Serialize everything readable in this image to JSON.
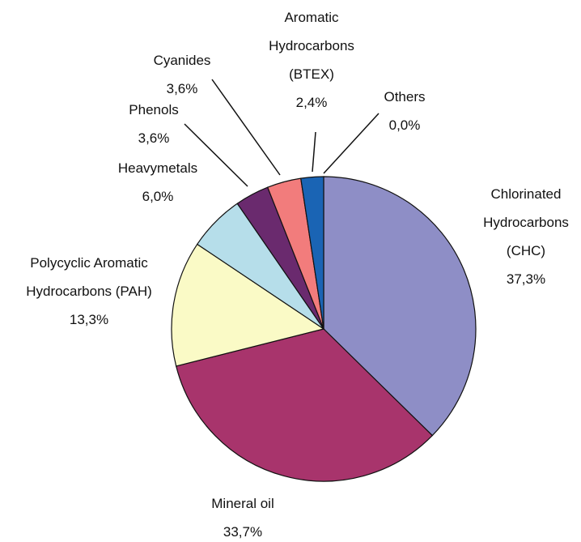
{
  "chart_data": {
    "type": "pie",
    "categories": [
      "Chlorinated\nHydrocarbons\n(CHC)",
      "Mineral oil",
      "Polycyclic Aromatic\nHydrocarbons (PAH)",
      "Heavymetals",
      "Phenols",
      "Cyanides",
      "Aromatic\nHydrocarbons\n(BTEX)",
      "Others"
    ],
    "values": [
      37.3,
      33.7,
      13.3,
      6.0,
      3.6,
      3.6,
      2.4,
      0.0
    ],
    "value_labels": [
      "37,3%",
      "33,7%",
      "13,3%",
      "6,0%",
      "3,6%",
      "3,6%",
      "2,4%",
      "0,0%"
    ],
    "colors": [
      "#8e8ec6",
      "#a8346c",
      "#fafac6",
      "#b6deea",
      "#6a2a6e",
      "#f27c7c",
      "#1a64b4",
      "#999999"
    ]
  }
}
